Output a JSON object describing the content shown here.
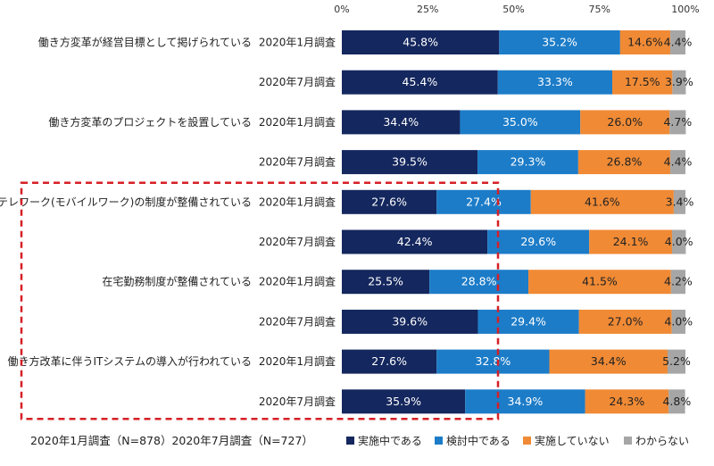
{
  "chart_data": {
    "type": "bar",
    "orientation": "horizontal-stacked-100",
    "x_ticks": [
      "0%",
      "25%",
      "50%",
      "75%",
      "100%"
    ],
    "xlim": [
      0,
      100
    ],
    "legend_position": "bottom",
    "series_names": [
      "実施中である",
      "検討中である",
      "実施していない",
      "わからない"
    ],
    "colors": [
      "#14275e",
      "#1c7cc8",
      "#f08a35",
      "#a6a6a6"
    ],
    "text_colors": [
      "#ffffff",
      "#ffffff",
      "#222222",
      "#222222"
    ],
    "categories": [
      {
        "name": "働き方変革が経営目標として掲げられている",
        "survey": "2020年1月調査",
        "values": [
          45.8,
          35.2,
          14.6,
          4.4
        ],
        "labels": [
          "45.8%",
          "35.2%",
          "14.6%",
          "4.4%"
        ]
      },
      {
        "name": "",
        "survey": "2020年7月調査",
        "values": [
          45.4,
          33.3,
          17.5,
          3.9
        ],
        "labels": [
          "45.4%",
          "33.3%",
          "17.5%",
          "3.9%"
        ]
      },
      {
        "name": "働き方変革のプロジェクトを設置している",
        "survey": "2020年1月調査",
        "values": [
          34.4,
          35.0,
          26.0,
          4.7
        ],
        "labels": [
          "34.4%",
          "35.0%",
          "26.0%",
          "4.7%"
        ]
      },
      {
        "name": "",
        "survey": "2020年7月調査",
        "values": [
          39.5,
          29.3,
          26.8,
          4.4
        ],
        "labels": [
          "39.5%",
          "29.3%",
          "26.8%",
          "4.4%"
        ]
      },
      {
        "name": "テレワーク(モバイルワーク)の制度が整備されている",
        "survey": "2020年1月調査",
        "values": [
          27.6,
          27.4,
          41.6,
          3.4
        ],
        "labels": [
          "27.6%",
          "27.4%",
          "41.6%",
          "3.4%"
        ]
      },
      {
        "name": "",
        "survey": "2020年7月調査",
        "values": [
          42.4,
          29.6,
          24.1,
          4.0
        ],
        "labels": [
          "42.4%",
          "29.6%",
          "24.1%",
          "4.0%"
        ]
      },
      {
        "name": "在宅勤務制度が整備されている",
        "survey": "2020年1月調査",
        "values": [
          25.5,
          28.8,
          41.5,
          4.2
        ],
        "labels": [
          "25.5%",
          "28.8%",
          "41.5%",
          "4.2%"
        ]
      },
      {
        "name": "",
        "survey": "2020年7月調査",
        "values": [
          39.6,
          29.4,
          27.0,
          4.0
        ],
        "labels": [
          "39.6%",
          "29.4%",
          "27.0%",
          "4.0%"
        ]
      },
      {
        "name": "働き方改革に伴うITシステムの導入が行われている",
        "survey": "2020年1月調査",
        "values": [
          27.6,
          32.8,
          34.4,
          5.2
        ],
        "labels": [
          "27.6%",
          "32.8%",
          "34.4%",
          "5.2%"
        ]
      },
      {
        "name": "",
        "survey": "2020年7月調査",
        "values": [
          35.9,
          34.9,
          24.3,
          4.8
        ],
        "labels": [
          "35.9%",
          "34.9%",
          "24.3%",
          "4.8%"
        ]
      }
    ],
    "footnote": "2020年1月調査（N=878）2020年7月調査（N=727）",
    "annotation": "red dashed highlight box around telework, remote work and IT system rows",
    "highlight_color": "#d61f26"
  }
}
